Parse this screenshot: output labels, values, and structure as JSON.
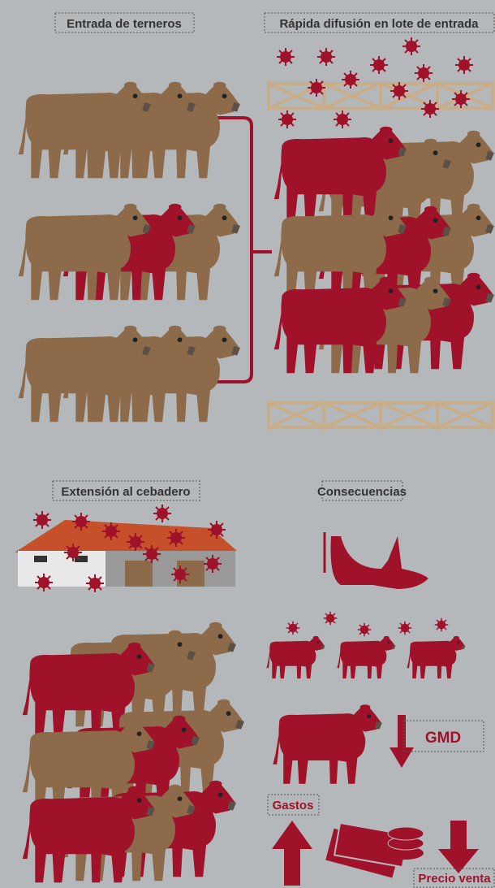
{
  "labels": {
    "entry": "Entrada de terneros",
    "spread": "Rápida difusión en lote de entrada",
    "extension": "Extensión al cebadero",
    "consequences": "Consecuencias",
    "gmd": "GMD",
    "costs": "Gastos",
    "price": "Precio venta"
  }
}
